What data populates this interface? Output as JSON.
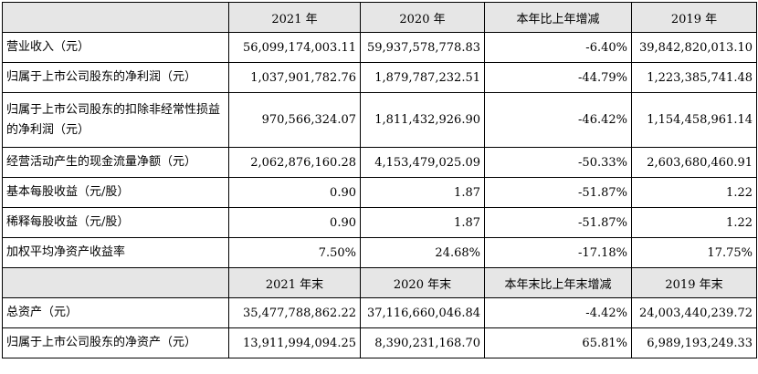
{
  "header1": [
    "",
    "2021 年",
    "2020 年",
    "本年比上年增减",
    "2019 年"
  ],
  "section1_rows": [
    {
      "label": "营业收入（元）",
      "v2021": "56,099,174,003.11",
      "v2020": "59,937,578,778.83",
      "change": "-6.40%",
      "v2019": "39,842,820,013.10"
    },
    {
      "label": "归属于上市公司股东的净利润（元）",
      "v2021": "1,037,901,782.76",
      "v2020": "1,879,787,232.51",
      "change": "-44.79%",
      "v2019": "1,223,385,741.48"
    },
    {
      "label": "归属于上市公司股东的扣除非经常性损益的净利润（元）",
      "v2021": "970,566,324.07",
      "v2020": "1,811,432,926.90",
      "change": "-46.42%",
      "v2019": "1,154,458,961.14"
    },
    {
      "label": "经营活动产生的现金流量净额（元）",
      "v2021": "2,062,876,160.28",
      "v2020": "4,153,479,025.09",
      "change": "-50.33%",
      "v2019": "2,603,680,460.91"
    },
    {
      "label": "基本每股收益（元/股）",
      "v2021": "0.90",
      "v2020": "1.87",
      "change": "-51.87%",
      "v2019": "1.22"
    },
    {
      "label": "稀释每股收益（元/股）",
      "v2021": "0.90",
      "v2020": "1.87",
      "change": "-51.87%",
      "v2019": "1.22"
    },
    {
      "label": "加权平均净资产收益率",
      "v2021": "7.50%",
      "v2020": "24.68%",
      "change": "-17.18%",
      "v2019": "17.75%"
    }
  ],
  "header2": [
    "",
    "2021 年末",
    "2020 年末",
    "本年末比上年末增减",
    "2019 年末"
  ],
  "section2_rows": [
    {
      "label": "总资产（元）",
      "v2021": "35,477,788,862.22",
      "v2020": "37,116,660,046.84",
      "change": "-4.42%",
      "v2019": "24,003,440,239.72"
    },
    {
      "label": "归属于上市公司股东的净资产（元）",
      "v2021": "13,911,994,094.25",
      "v2020": "8,390,231,168.70",
      "change": "65.81%",
      "v2019": "6,989,193,249.33"
    }
  ]
}
